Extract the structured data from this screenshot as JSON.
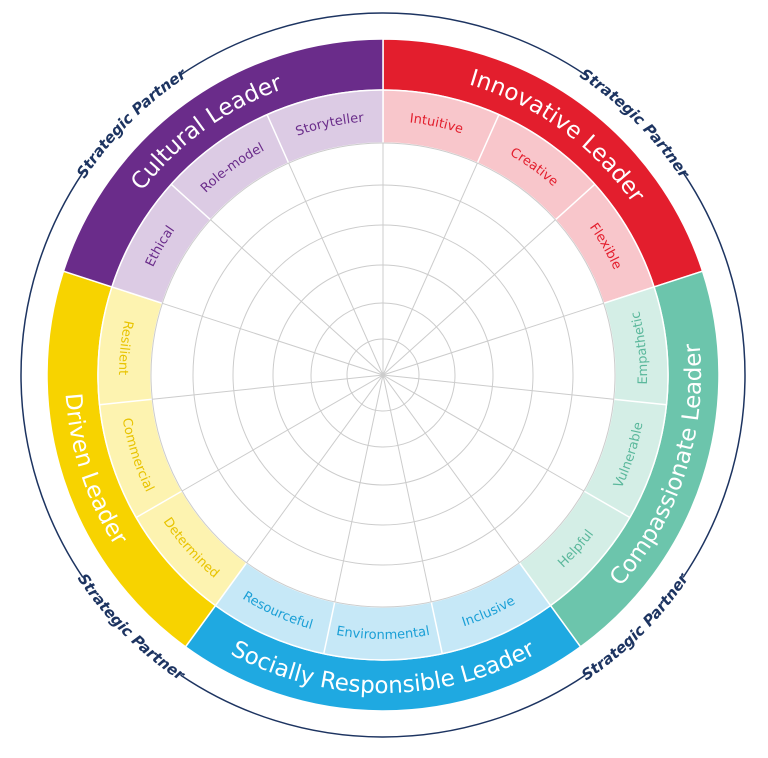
{
  "segments": [
    {
      "name": "Innovative Leader",
      "traits": [
        "Intuitive",
        "Creative",
        "Flexible"
      ]
    },
    {
      "name": "Compassionate Leader",
      "traits": [
        "Helpful",
        "Vulnerable",
        "Empathetic"
      ]
    },
    {
      "name": "Socially Responsible Leader",
      "traits": [
        "Resourceful",
        "Environmental",
        "Inclusive"
      ]
    },
    {
      "name": "Driven Leader",
      "traits": [
        "Resilient",
        "Commercial",
        "Determined"
      ]
    },
    {
      "name": "Cultural Leader",
      "traits": [
        "Ethical",
        "Role-model",
        "Storyteller"
      ]
    }
  ],
  "outer_labels": [
    "Strategic Partner",
    "Strategic Partner",
    "Strategic Partner",
    "Strategic Partner"
  ]
}
